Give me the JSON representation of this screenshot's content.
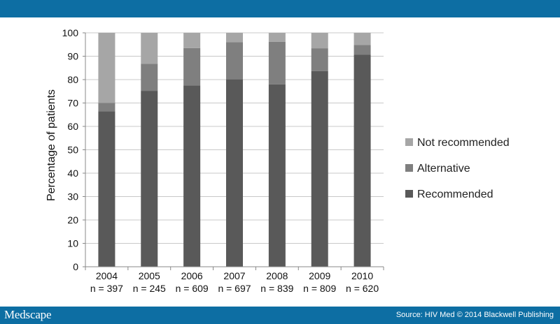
{
  "header": {},
  "footer": {
    "brand": "Medscape",
    "source": "Source: HIV Med © 2014 Blackwell Publishing"
  },
  "colors": {
    "bar_brand": "#0d6ea3",
    "recommended": "#595959",
    "alternative": "#7f7f7f",
    "not_recommended": "#a6a6a6",
    "gridline": "#c8c8c8"
  },
  "chart_data": {
    "type": "bar",
    "stacked": true,
    "categories": [
      "2004",
      "2005",
      "2006",
      "2007",
      "2008",
      "2009",
      "2010"
    ],
    "category_sublabels": [
      "n = 397",
      "n = 245",
      "n = 609",
      "n = 697",
      "n = 839",
      "n = 809",
      "n = 620"
    ],
    "series": [
      {
        "name": "Recommended",
        "values": [
          66.5,
          75.2,
          77.5,
          80.2,
          78.0,
          83.6,
          90.6
        ]
      },
      {
        "name": "Alternative",
        "values": [
          3.5,
          11.6,
          16.0,
          15.8,
          18.2,
          9.8,
          4.2
        ]
      },
      {
        "name": "Not recommended",
        "values": [
          30.0,
          13.2,
          6.5,
          4.0,
          3.8,
          6.6,
          5.2
        ]
      }
    ],
    "ylabel": "Percentage of patients",
    "ylim": [
      0,
      100
    ],
    "yticks": [
      "0",
      "10",
      "20",
      "30",
      "40",
      "50",
      "60",
      "70",
      "80",
      "90",
      "100"
    ],
    "grid": "horizontal",
    "legend": {
      "position": "right",
      "items": [
        "Not recommended",
        "Alternative",
        "Recommended"
      ]
    }
  }
}
